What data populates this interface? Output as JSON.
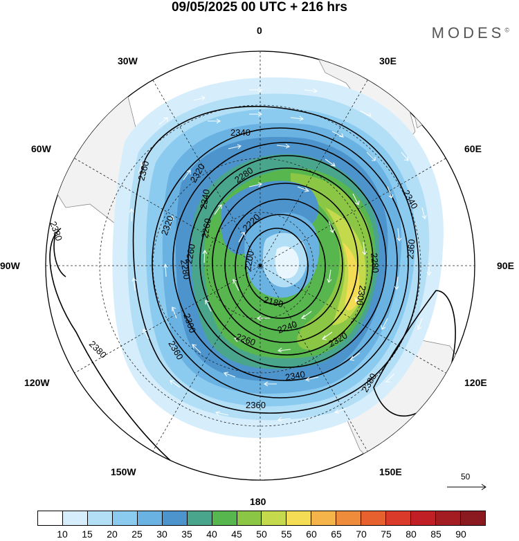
{
  "title": "09/05/2025  00 UTC  + 216 hrs",
  "brand": "MODES",
  "brand_mark": "©",
  "longitude_labels": {
    "top": "0",
    "bottom": "180",
    "e30": "30E",
    "e60": "60E",
    "e90": "90E",
    "e120": "120E",
    "e150": "150E",
    "w30": "30W",
    "w60": "60W",
    "w90": "90W",
    "w120": "120W",
    "w150": "150W"
  },
  "reference_vector": "50",
  "contour_labels": [
    "2340",
    "2320",
    "2280",
    "2260",
    "2220",
    "2200",
    "2180",
    "2240",
    "2260",
    "2280",
    "2300",
    "2320",
    "2340",
    "2360",
    "2380",
    "2360",
    "2380",
    "2380",
    "2360",
    "2300",
    "2280",
    "2260",
    "2320",
    "2340",
    "2360",
    "2340"
  ],
  "colorbar": {
    "ticks": [
      "10",
      "15",
      "20",
      "25",
      "30",
      "35",
      "40",
      "45",
      "50",
      "55",
      "60",
      "65",
      "70",
      "75",
      "80",
      "85",
      "90"
    ],
    "colors": [
      "#ffffff",
      "#d6eefb",
      "#b2def6",
      "#8ccbf0",
      "#69b2e2",
      "#4d94cc",
      "#4aa58d",
      "#58b64f",
      "#8bc745",
      "#c5d94c",
      "#f4dc55",
      "#f4b44a",
      "#ef8c3c",
      "#e7612f",
      "#d93a29",
      "#c01f26",
      "#a31c22",
      "#8a1a1f"
    ]
  }
}
